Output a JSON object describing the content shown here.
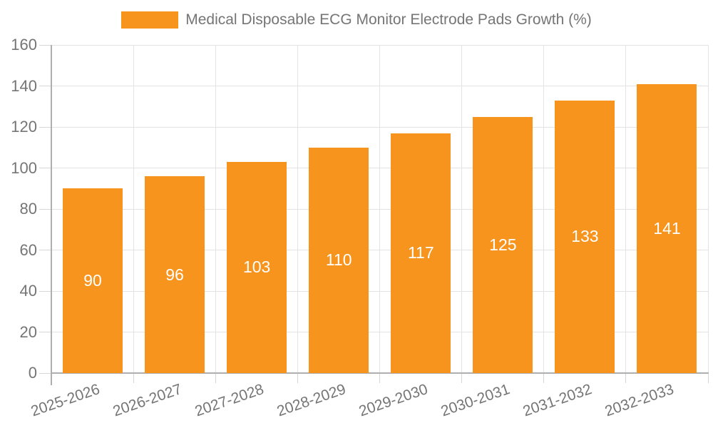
{
  "chart_data": {
    "type": "bar",
    "title": "Medical Disposable ECG Monitor Electrode Pads Growth (%)",
    "legend": [
      "Medical Disposable ECG Monitor Electrode Pads Growth (%)"
    ],
    "legend_position": "top",
    "categories": [
      "2025-2026",
      "2026-2027",
      "2027-2028",
      "2028-2029",
      "2029-2030",
      "2030-2031",
      "2031-2032",
      "2032-2033"
    ],
    "values": [
      90,
      96,
      103,
      110,
      117,
      125,
      133,
      141
    ],
    "xlabel": "",
    "ylabel": "",
    "ylim": [
      0,
      160
    ],
    "yticks": [
      0,
      20,
      40,
      60,
      80,
      100,
      120,
      140,
      160
    ],
    "grid": true,
    "x_label_rotation_deg": -19,
    "colors": {
      "bar": "#F7941E",
      "value_label": "#FFFFFF",
      "axis_line": "#AFAFAF",
      "gridline": "#E3E3E3",
      "tick": "#D6D6D6",
      "text": "#757575"
    }
  }
}
